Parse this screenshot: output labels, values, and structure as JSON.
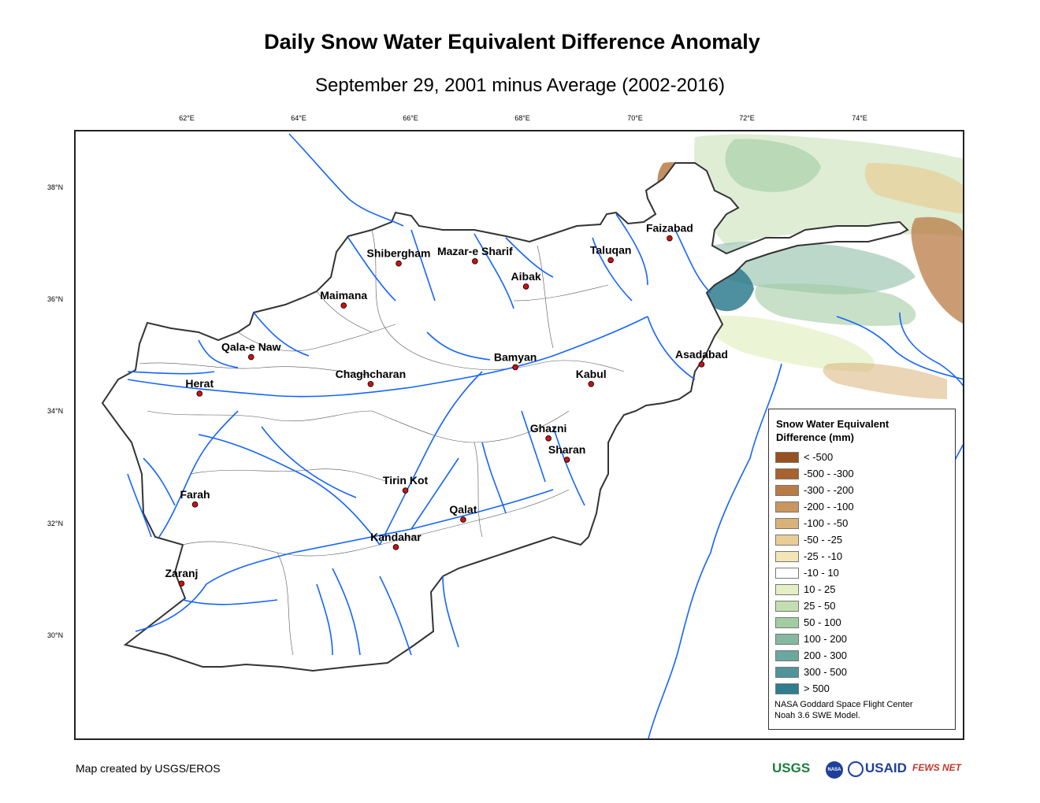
{
  "title": "Daily Snow Water Equivalent Difference Anomaly",
  "subtitle": "September 29, 2001 minus Average (2002-2016)",
  "axes": {
    "longitude_ticks": [
      "62°E",
      "64°E",
      "66°E",
      "68°E",
      "70°E",
      "72°E",
      "74°E"
    ],
    "latitude_ticks": [
      "38°N",
      "36°N",
      "34°N",
      "32°N",
      "30°N"
    ]
  },
  "cities": [
    {
      "name": "Faizabad",
      "lon": 70.58,
      "lat": 37.12
    },
    {
      "name": "Taluqan",
      "lon": 69.53,
      "lat": 36.73
    },
    {
      "name": "Shibergham",
      "lon": 65.75,
      "lat": 36.67
    },
    {
      "name": "Mazar-e Sharif",
      "lon": 67.11,
      "lat": 36.71
    },
    {
      "name": "Aibak",
      "lon": 68.02,
      "lat": 36.26
    },
    {
      "name": "Maimana",
      "lon": 64.77,
      "lat": 35.92
    },
    {
      "name": "Qala-e Naw",
      "lon": 63.12,
      "lat": 35.0
    },
    {
      "name": "Asadabad",
      "lon": 71.15,
      "lat": 34.87
    },
    {
      "name": "Bamyan",
      "lon": 67.83,
      "lat": 34.82
    },
    {
      "name": "Kabul",
      "lon": 69.18,
      "lat": 34.52
    },
    {
      "name": "Chaghcharan",
      "lon": 65.25,
      "lat": 34.52
    },
    {
      "name": "Herat",
      "lon": 62.2,
      "lat": 34.35
    },
    {
      "name": "Ghazni",
      "lon": 68.42,
      "lat": 33.55
    },
    {
      "name": "Sharan",
      "lon": 68.75,
      "lat": 33.17
    },
    {
      "name": "Tirin Kot",
      "lon": 65.87,
      "lat": 32.62
    },
    {
      "name": "Farah",
      "lon": 62.12,
      "lat": 32.37
    },
    {
      "name": "Qalat",
      "lon": 66.9,
      "lat": 32.1
    },
    {
      "name": "Kandahar",
      "lon": 65.7,
      "lat": 31.61
    },
    {
      "name": "Zaranj",
      "lon": 61.88,
      "lat": 30.96
    }
  ],
  "legend": {
    "title_line1": "Snow Water Equivalent",
    "title_line2": "Difference (mm)",
    "items": [
      {
        "label": "< -500",
        "color": "#97501f"
      },
      {
        "label": "-500 - -300",
        "color": "#a7622d"
      },
      {
        "label": "-300 - -200",
        "color": "#b97b45"
      },
      {
        "label": "-200 - -100",
        "color": "#c99660"
      },
      {
        "label": "-100 - -50",
        "color": "#d9b27a"
      },
      {
        "label": "-50 - -25",
        "color": "#e8cd95"
      },
      {
        "label": "-25 - -10",
        "color": "#f3e6b4"
      },
      {
        "label": "-10 - 10",
        "color": "#ffffff"
      },
      {
        "label": "10 - 25",
        "color": "#e4efc4"
      },
      {
        "label": "25 - 50",
        "color": "#c3dfb1"
      },
      {
        "label": "50 - 100",
        "color": "#a2cca2"
      },
      {
        "label": "100 - 200",
        "color": "#85b8a0"
      },
      {
        "label": "200 - 300",
        "color": "#6aa79f"
      },
      {
        "label": "300 - 500",
        "color": "#4e949b"
      },
      {
        "label": "> 500",
        "color": "#2f7d8e"
      }
    ],
    "credit_line1": "NASA Goddard Space Flight Center",
    "credit_line2": "Noah 3.6 SWE Model."
  },
  "footer": {
    "credit": "Map created by USGS/EROS",
    "logos": [
      "USGS",
      "NASA",
      "USAID",
      "FEWS NET"
    ]
  },
  "colors": {
    "river": "#1464ff",
    "border": "#333333",
    "city_marker": "#cc1111"
  }
}
